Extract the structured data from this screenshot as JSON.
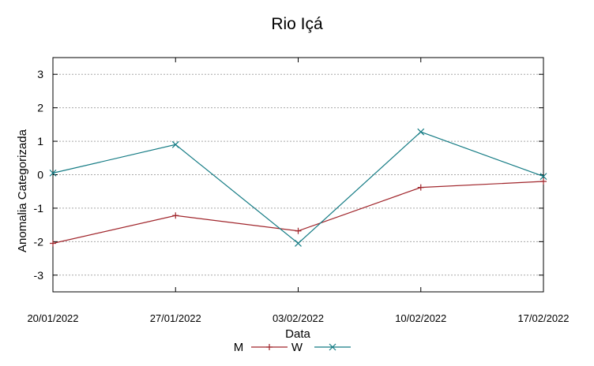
{
  "chart_data": {
    "type": "line",
    "title": "Rio Içá",
    "xlabel": "Data",
    "ylabel": "Anomalia Categorizada",
    "categories": [
      "20/01/2022",
      "27/01/2022",
      "03/02/2022",
      "10/02/2022",
      "17/02/2022"
    ],
    "ylim": [
      -3.5,
      3.5
    ],
    "yticks": [
      3,
      2,
      1,
      0,
      -1,
      -2,
      -3
    ],
    "grid": true,
    "legend_position": "bottom",
    "series": [
      {
        "name": "M",
        "color": "#a0252b",
        "marker": "plus",
        "values": [
          -2.05,
          -1.22,
          -1.68,
          -0.38,
          -0.2
        ]
      },
      {
        "name": "W",
        "color": "#147b84",
        "marker": "cross",
        "values": [
          0.05,
          0.9,
          -2.05,
          1.28,
          -0.05
        ]
      }
    ]
  }
}
